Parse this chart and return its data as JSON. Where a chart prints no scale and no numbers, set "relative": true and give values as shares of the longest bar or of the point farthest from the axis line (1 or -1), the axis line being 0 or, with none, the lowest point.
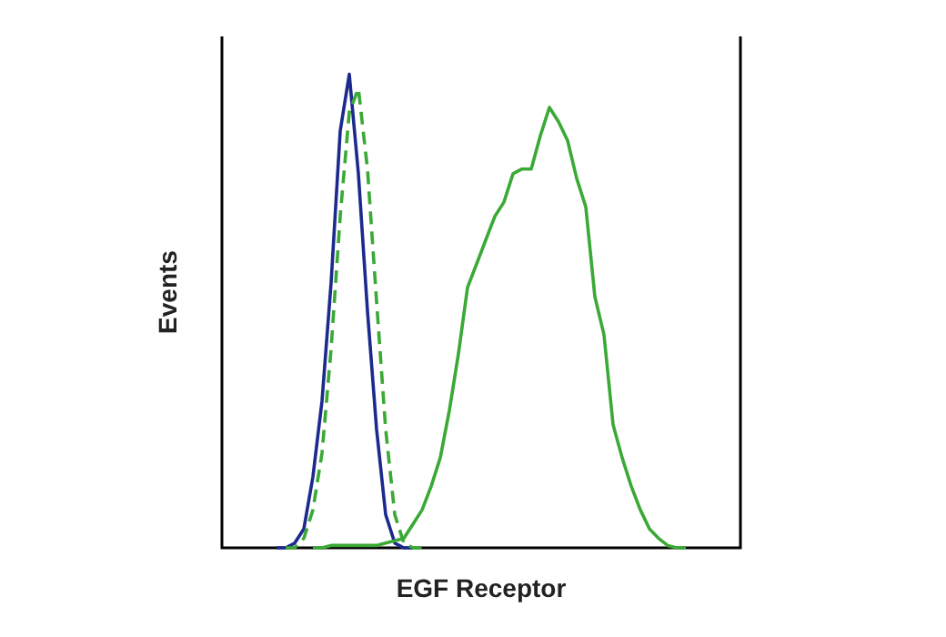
{
  "chart_data": {
    "type": "line",
    "relative": true,
    "xlabel": "EGF Receptor",
    "ylabel": "Events",
    "legend": false,
    "marker": "none",
    "categories": [
      null,
      null,
      null,
      null,
      null,
      null,
      null,
      null,
      null,
      null,
      null,
      null,
      null,
      null,
      null,
      null,
      null,
      null,
      null,
      null,
      null,
      null,
      null,
      null,
      null,
      null,
      null,
      null,
      null,
      null,
      null,
      null,
      null,
      null,
      null,
      null,
      null,
      null,
      null,
      null,
      null,
      null,
      null,
      null,
      null,
      null,
      null,
      null,
      null,
      null,
      null,
      null,
      null,
      null,
      null,
      null,
      null,
      null
    ],
    "series": [
      {
        "color": "#3aa935",
        "line_style": "solid",
        "values": [
          null,
          null,
          null,
          null,
          null,
          null,
          null,
          null,
          null,
          null,
          0,
          0,
          0.005,
          0.005,
          0.005,
          0.005,
          0.005,
          0.005,
          0.01,
          0.015,
          0.02,
          0.05,
          0.08,
          0.13,
          0.19,
          0.29,
          0.41,
          0.55,
          0.6,
          0.65,
          0.7,
          0.73,
          0.79,
          0.8,
          0.8,
          0.87,
          0.93,
          0.9,
          0.86,
          0.78,
          0.72,
          0.53,
          0.45,
          0.26,
          0.19,
          0.13,
          0.08,
          0.04,
          0.02,
          0.005,
          0,
          0,
          null,
          null,
          null,
          null,
          null,
          null
        ]
      },
      {
        "color": "#3aa935",
        "line_style": "dashed",
        "values": [
          null,
          null,
          null,
          null,
          null,
          null,
          null,
          0,
          0,
          0.02,
          0.08,
          0.2,
          0.42,
          0.7,
          0.92,
          0.97,
          0.8,
          0.52,
          0.25,
          0.07,
          0.01,
          0,
          0,
          null,
          null,
          null,
          null,
          null,
          null,
          null,
          null,
          null,
          null,
          null,
          null,
          null,
          null,
          null,
          null,
          null,
          null,
          null,
          null,
          null,
          null,
          null,
          null,
          null,
          null,
          null,
          null,
          null,
          null,
          null,
          null,
          null,
          null,
          null
        ]
      },
      {
        "color": "#1c2a8e",
        "line_style": "solid",
        "values": [
          null,
          null,
          null,
          null,
          null,
          null,
          0,
          0,
          0.01,
          0.04,
          0.15,
          0.31,
          0.56,
          0.88,
          1,
          0.79,
          0.5,
          0.25,
          0.07,
          0.01,
          0,
          0,
          null,
          null,
          null,
          null,
          null,
          null,
          null,
          null,
          null,
          null,
          null,
          null,
          null,
          null,
          null,
          null,
          null,
          null,
          null,
          null,
          null,
          null,
          null,
          null,
          null,
          null,
          null,
          null,
          null,
          null,
          null,
          null,
          null,
          null,
          null,
          null
        ]
      }
    ]
  }
}
